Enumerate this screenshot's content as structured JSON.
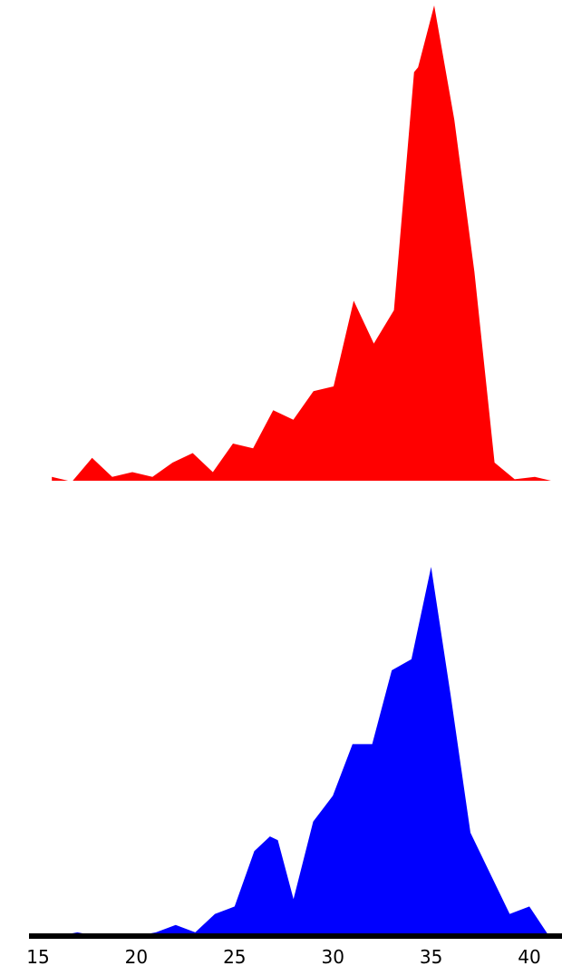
{
  "chart_data": [
    {
      "type": "area",
      "title": "",
      "xlabel": "",
      "ylabel": "",
      "xlim": [
        15,
        41.5
      ],
      "ylim": [
        0,
        100
      ],
      "xticks": [
        15,
        20,
        25,
        30,
        35,
        40
      ],
      "grid": false,
      "legend": "none",
      "color": "#ff0000",
      "axis_color": "#000000",
      "x": [
        16,
        17,
        18,
        19,
        20,
        21,
        22,
        23,
        24,
        25,
        26,
        27,
        28,
        29,
        30,
        31,
        32,
        33,
        34,
        34.2,
        35,
        36,
        37,
        38,
        39,
        40,
        41
      ],
      "values": [
        1,
        0,
        5,
        1,
        2,
        1,
        4,
        6,
        2,
        8,
        7,
        15,
        13,
        19,
        20,
        38,
        29,
        36,
        86,
        87,
        100,
        76,
        44,
        4,
        0.5,
        1,
        0
      ]
    },
    {
      "type": "area",
      "title": "",
      "xlabel": "",
      "ylabel": "",
      "xlim": [
        15,
        41.5
      ],
      "ylim": [
        0,
        100
      ],
      "xticks": [
        15,
        20,
        25,
        30,
        35,
        40
      ],
      "grid": false,
      "legend": "none",
      "color": "#0000ff",
      "axis_color": "#000000",
      "x": [
        16,
        17,
        18,
        19,
        20,
        21,
        22,
        23,
        24,
        25,
        26,
        26.8,
        27.2,
        28,
        29,
        30,
        31,
        32,
        33,
        34,
        35,
        36,
        37,
        38,
        39,
        40,
        41
      ],
      "values": [
        0,
        1,
        0,
        0,
        0,
        1,
        3,
        1,
        6,
        8,
        23,
        27,
        26,
        10,
        31,
        38,
        52,
        52,
        72,
        75,
        100,
        65,
        28,
        17,
        6,
        8,
        0
      ]
    }
  ]
}
